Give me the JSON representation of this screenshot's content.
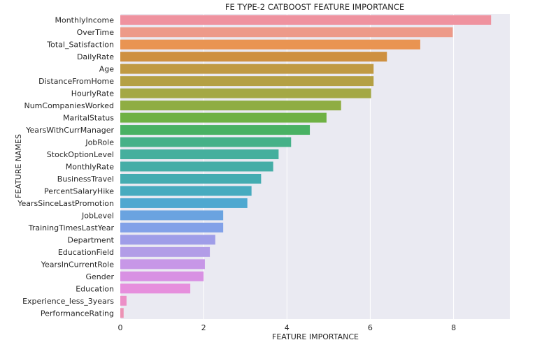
{
  "chart_data": {
    "type": "bar",
    "orientation": "horizontal",
    "title": "FE TYPE-2 CATBOOST FEATURE IMPORTANCE",
    "xlabel": "FEATURE IMPORTANCE",
    "ylabel": "FEATURE NAMES",
    "xlim": [
      0,
      9.35
    ],
    "xticks": [
      0,
      2,
      4,
      6,
      8
    ],
    "grid": true,
    "background": "#eaeaf2",
    "categories": [
      "MonthlyIncome",
      "OverTime",
      "Total_Satisfaction",
      "DailyRate",
      "Age",
      "DistanceFromHome",
      "HourlyRate",
      "NumCompaniesWorked",
      "MaritalStatus",
      "YearsWithCurrManager",
      "JobRole",
      "StockOptionLevel",
      "MonthlyRate",
      "BusinessTravel",
      "PercentSalaryHike",
      "YearsSinceLastPromotion",
      "JobLevel",
      "TrainingTimesLastYear",
      "Department",
      "EducationField",
      "YearsInCurrentRole",
      "Gender",
      "Education",
      "Experience_less_3years",
      "PerformanceRating"
    ],
    "values": [
      8.9,
      7.98,
      7.2,
      6.4,
      6.08,
      6.08,
      6.02,
      5.3,
      4.95,
      4.55,
      4.1,
      3.8,
      3.67,
      3.38,
      3.15,
      3.05,
      2.47,
      2.47,
      2.28,
      2.15,
      2.03,
      2.0,
      1.68,
      0.15,
      0.08
    ],
    "colors": [
      "#ef929f",
      "#ed9a89",
      "#e99452",
      "#ce9040",
      "#c09a43",
      "#b4a044",
      "#a4a845",
      "#8fad43",
      "#6fb144",
      "#49b163",
      "#46b188",
      "#45af9d",
      "#45ada6",
      "#44acb1",
      "#47abbf",
      "#4ea8d0",
      "#6aa3e0",
      "#82a1e8",
      "#9f9de8",
      "#b29de7",
      "#c797e7",
      "#d891e3",
      "#e68fdd",
      "#ec8fc7",
      "#ec92b4"
    ]
  }
}
